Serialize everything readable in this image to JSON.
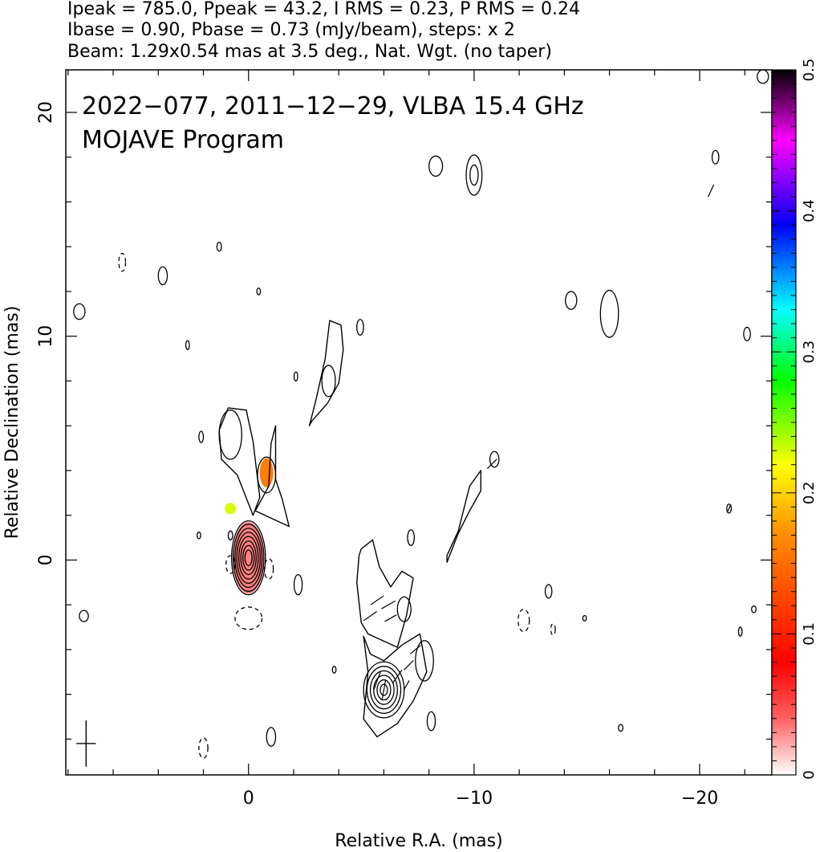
{
  "header": {
    "line1": "Ipeak = 785.0, Ppeak = 43.2, I RMS = 0.23, P RMS = 0.24",
    "line2": "Ibase = 0.90, Pbase = 0.73 (mJy/beam), steps: x 2",
    "line3": "Beam: 1.29x0.54 mas at 3.5 deg., Nat. Wgt. (no taper)"
  },
  "plot": {
    "title_line1": "2022−077, 2011−12−29, VLBA 15.4 GHz",
    "title_line2": "MOJAVE Program"
  },
  "chart_data": {
    "type": "contour",
    "xlabel": "Relative R.A. (mas)",
    "ylabel": "Relative Declination (mas)",
    "xlim": [
      8.1,
      -23.2
    ],
    "ylim": [
      -9.6,
      21.9
    ],
    "x_ticks": [
      0,
      -10,
      -20
    ],
    "x_tick_labels": [
      "0",
      "−10",
      "−20"
    ],
    "y_ticks": [
      0,
      10,
      20
    ],
    "y_tick_labels": [
      "0",
      "10",
      "20"
    ],
    "colorbar": {
      "range": [
        0,
        0.5
      ],
      "ticks": [
        0,
        0.1,
        0.2,
        0.3,
        0.4,
        0.5
      ],
      "tick_labels": [
        "0",
        "0.1",
        "0.2",
        "0.3",
        "0.4",
        "0.5"
      ],
      "colors": [
        "#ffffff",
        "#ff0000",
        "#ff8c00",
        "#ffff00",
        "#00ff00",
        "#00ffff",
        "#0000ff",
        "#ff00ff",
        "#000000"
      ]
    },
    "core_contours": [
      {
        "x": 0.0,
        "y": 0.1,
        "rx": 0.75,
        "ry": 1.65
      },
      {
        "x": 0.0,
        "y": 0.1,
        "rx": 0.68,
        "ry": 1.5
      },
      {
        "x": 0.0,
        "y": 0.1,
        "rx": 0.6,
        "ry": 1.32
      },
      {
        "x": 0.0,
        "y": 0.1,
        "rx": 0.52,
        "ry": 1.14
      },
      {
        "x": 0.0,
        "y": 0.1,
        "rx": 0.43,
        "ry": 0.95
      },
      {
        "x": 0.0,
        "y": 0.1,
        "rx": 0.34,
        "ry": 0.75
      },
      {
        "x": 0.0,
        "y": 0.1,
        "rx": 0.25,
        "ry": 0.55
      },
      {
        "x": 0.0,
        "y": 0.1,
        "rx": 0.16,
        "ry": 0.35
      }
    ],
    "knot_contours": [
      {
        "x": -6.0,
        "y": -5.8,
        "rx": 0.9,
        "ry": 1.25
      },
      {
        "x": -6.0,
        "y": -5.8,
        "rx": 0.75,
        "ry": 1.05
      },
      {
        "x": -6.0,
        "y": -5.8,
        "rx": 0.6,
        "ry": 0.85
      },
      {
        "x": -6.0,
        "y": -5.8,
        "rx": 0.45,
        "ry": 0.65
      },
      {
        "x": -6.0,
        "y": -5.8,
        "rx": 0.3,
        "ry": 0.45
      },
      {
        "x": -6.0,
        "y": -5.8,
        "rx": 0.16,
        "ry": 0.25
      }
    ],
    "small_contours": [
      {
        "x": -10.0,
        "y": 17.2,
        "rx": 0.35,
        "ry": 0.9
      },
      {
        "x": -10.0,
        "y": 17.2,
        "rx": 0.18,
        "ry": 0.45
      },
      {
        "x": -8.3,
        "y": 17.6,
        "rx": 0.3,
        "ry": 0.45
      },
      {
        "x": -16.0,
        "y": 11.0,
        "rx": 0.4,
        "ry": 1.05
      },
      {
        "x": -14.3,
        "y": 11.6,
        "rx": 0.25,
        "ry": 0.4
      },
      {
        "x": 3.8,
        "y": 12.7,
        "rx": 0.2,
        "ry": 0.4
      },
      {
        "x": -3.55,
        "y": 8.0,
        "rx": 0.3,
        "ry": 0.7
      },
      {
        "x": -1.0,
        "y": -7.9,
        "rx": 0.2,
        "ry": 0.42
      },
      {
        "x": -8.1,
        "y": -7.2,
        "rx": 0.18,
        "ry": 0.42
      },
      {
        "x": -7.2,
        "y": 1.0,
        "rx": 0.15,
        "ry": 0.35
      },
      {
        "x": -2.2,
        "y": -1.1,
        "rx": 0.18,
        "ry": 0.45
      },
      {
        "x": 0.8,
        "y": 5.6,
        "rx": 0.5,
        "ry": 1.1
      },
      {
        "x": -20.7,
        "y": 18.0,
        "rx": 0.15,
        "ry": 0.3
      },
      {
        "x": -22.8,
        "y": 21.6,
        "rx": 0.25,
        "ry": 0.3
      },
      {
        "x": -16.5,
        "y": -7.5,
        "rx": 0.1,
        "ry": 0.15
      },
      {
        "x": 2.1,
        "y": 5.5,
        "rx": 0.1,
        "ry": 0.25
      },
      {
        "x": 2.2,
        "y": 1.1,
        "rx": 0.08,
        "ry": 0.15
      },
      {
        "x": 7.5,
        "y": 11.1,
        "rx": 0.25,
        "ry": 0.35
      },
      {
        "x": 1.3,
        "y": 14.0,
        "rx": 0.1,
        "ry": 0.2
      },
      {
        "x": -0.45,
        "y": 12.0,
        "rx": 0.08,
        "ry": 0.15
      },
      {
        "x": -4.95,
        "y": 10.4,
        "rx": 0.15,
        "ry": 0.35
      },
      {
        "x": -2.1,
        "y": 8.2,
        "rx": 0.08,
        "ry": 0.2
      },
      {
        "x": 2.7,
        "y": 9.6,
        "rx": 0.08,
        "ry": 0.2
      },
      {
        "x": 7.3,
        "y": -2.5,
        "rx": 0.2,
        "ry": 0.25
      },
      {
        "x": -3.8,
        "y": -4.9,
        "rx": 0.08,
        "ry": 0.15
      },
      {
        "x": -6.9,
        "y": -2.2,
        "rx": 0.3,
        "ry": 0.55
      },
      {
        "x": -7.8,
        "y": -4.5,
        "rx": 0.4,
        "ry": 0.9
      },
      {
        "x": -13.3,
        "y": -1.4,
        "rx": 0.15,
        "ry": 0.3
      },
      {
        "x": -14.9,
        "y": -2.6,
        "rx": 0.08,
        "ry": 0.12
      },
      {
        "x": -21.3,
        "y": 2.3,
        "rx": 0.1,
        "ry": 0.2
      },
      {
        "x": -22.1,
        "y": 10.1,
        "rx": 0.15,
        "ry": 0.3
      },
      {
        "x": -22.4,
        "y": -2.2,
        "rx": 0.1,
        "ry": 0.15
      },
      {
        "x": -21.8,
        "y": -3.2,
        "rx": 0.08,
        "ry": 0.2
      },
      {
        "x": -10.9,
        "y": 4.5,
        "rx": 0.2,
        "ry": 0.35
      },
      {
        "x": -0.8,
        "y": 3.8,
        "rx": 0.4,
        "ry": 0.8
      },
      {
        "x": 0.8,
        "y": 1.1,
        "rx": 0.1,
        "ry": 0.2
      }
    ],
    "dashed_contours": [
      {
        "x": 2.0,
        "y": -8.4,
        "rx": 0.2,
        "ry": 0.45
      },
      {
        "x": 5.6,
        "y": 13.3,
        "rx": 0.15,
        "ry": 0.4
      },
      {
        "x": -12.2,
        "y": -2.7,
        "rx": 0.25,
        "ry": 0.5
      },
      {
        "x": -0.9,
        "y": -0.4,
        "rx": 0.2,
        "ry": 0.45
      },
      {
        "x": 0.8,
        "y": -0.2,
        "rx": 0.2,
        "ry": 0.4
      },
      {
        "x": 0.0,
        "y": -2.6,
        "rx": 0.6,
        "ry": 0.5
      },
      {
        "x": -13.5,
        "y": -3.1,
        "rx": 0.1,
        "ry": 0.25
      }
    ],
    "jet_paths": [
      [
        [
          0.5,
          3.8
        ],
        [
          1.2,
          4.5
        ],
        [
          1.3,
          5.8
        ],
        [
          0.9,
          6.8
        ],
        [
          0.1,
          6.7
        ],
        [
          -0.2,
          5.3
        ],
        [
          -0.5,
          2.8
        ],
        [
          -0.2,
          2.0
        ]
      ],
      [
        [
          -0.3,
          2.2
        ],
        [
          -0.9,
          3.3
        ],
        [
          -1.0,
          5.2
        ],
        [
          -1.2,
          6.0
        ],
        [
          -1.2,
          3.6
        ],
        [
          -1.5,
          2.7
        ],
        [
          -1.8,
          1.5
        ]
      ],
      [
        [
          -2.7,
          6.0
        ],
        [
          -3.0,
          7.2
        ],
        [
          -3.4,
          9.0
        ],
        [
          -3.6,
          10.7
        ],
        [
          -4.1,
          10.5
        ],
        [
          -4.2,
          9.4
        ],
        [
          -4.0,
          7.9
        ],
        [
          -3.5,
          7.0
        ],
        [
          -2.8,
          6.2
        ]
      ],
      [
        [
          -5.0,
          0.5
        ],
        [
          -5.5,
          0.9
        ],
        [
          -5.8,
          -0.3
        ],
        [
          -6.3,
          -1.2
        ],
        [
          -6.8,
          -0.5
        ],
        [
          -7.3,
          -0.8
        ],
        [
          -7.0,
          -2.5
        ],
        [
          -6.6,
          -3.9
        ],
        [
          -5.3,
          -3.3
        ],
        [
          -5.0,
          -2.8
        ],
        [
          -4.8,
          -1.0
        ],
        [
          -4.9,
          0.2
        ]
      ],
      [
        [
          -8.8,
          0.2
        ],
        [
          -9.3,
          1.3
        ],
        [
          -9.8,
          3.3
        ],
        [
          -10.3,
          4.0
        ],
        [
          -10.3,
          3.1
        ],
        [
          -9.8,
          2.2
        ],
        [
          -9.3,
          1.2
        ],
        [
          -8.8,
          -0.1
        ]
      ],
      [
        [
          -5.1,
          -3.4
        ],
        [
          -5.3,
          -5.0
        ],
        [
          -5.1,
          -7.1
        ],
        [
          -5.7,
          -7.9
        ],
        [
          -6.6,
          -7.3
        ],
        [
          -7.3,
          -6.3
        ],
        [
          -7.9,
          -5.0
        ],
        [
          -7.6,
          -3.3
        ],
        [
          -6.8,
          -3.8
        ],
        [
          -6.0,
          -4.5
        ],
        [
          -5.4,
          -4.2
        ]
      ]
    ],
    "color_patches": [
      {
        "x": 0.0,
        "y": 0.1,
        "rx": 0.7,
        "ry": 1.6,
        "fraction": 0.08
      },
      {
        "x": -0.8,
        "y": 3.9,
        "rx": 0.3,
        "ry": 0.65,
        "fraction": 0.32
      },
      {
        "x": 0.8,
        "y": 2.3,
        "rx": 0.25,
        "ry": 0.25,
        "fraction": 0.46
      }
    ],
    "polarization_vectors": [
      {
        "x": -6.0,
        "y": -5.8,
        "angle_deg": 10,
        "length": 0.9
      },
      {
        "x": -5.7,
        "y": -5.4,
        "angle_deg": 20,
        "length": 0.9
      },
      {
        "x": -5.4,
        "y": -2.5,
        "angle_deg": 55,
        "length": 0.7
      },
      {
        "x": -5.7,
        "y": -1.8,
        "angle_deg": 55,
        "length": 0.7
      },
      {
        "x": -6.2,
        "y": -2.0,
        "angle_deg": 60,
        "length": 0.7
      },
      {
        "x": -6.3,
        "y": -2.6,
        "angle_deg": 60,
        "length": 0.6
      },
      {
        "x": -6.6,
        "y": -5.2,
        "angle_deg": 35,
        "length": 0.7
      },
      {
        "x": -7.1,
        "y": -4.7,
        "angle_deg": 45,
        "length": 0.6
      },
      {
        "x": -7.4,
        "y": -4.0,
        "angle_deg": 50,
        "length": 0.6
      },
      {
        "x": -7.0,
        "y": -5.6,
        "angle_deg": 30,
        "length": 0.5
      },
      {
        "x": -10.8,
        "y": 4.3,
        "angle_deg": 45,
        "length": 0.6
      },
      {
        "x": -20.5,
        "y": 16.5,
        "angle_deg": 25,
        "length": 0.6
      },
      {
        "x": -21.3,
        "y": 2.3,
        "angle_deg": 25,
        "length": 0.4
      }
    ],
    "beam": {
      "x": 7.2,
      "y": -8.2,
      "major": 1.29,
      "minor": 0.54,
      "pa_deg": 3.5
    }
  }
}
